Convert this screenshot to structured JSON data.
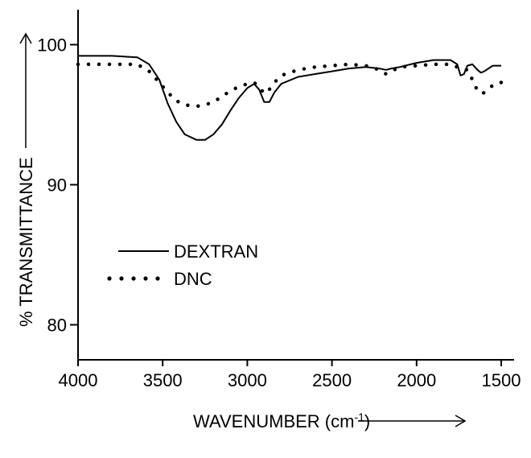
{
  "chart_data": {
    "type": "line",
    "xlabel": "WAVENUMBER (cm",
    "xlabel_sup": "-1",
    "xlabel_tail": ")",
    "ylabel": "% TRANSMITTANCE",
    "xlim": [
      4000,
      1500
    ],
    "ylim": [
      77.5,
      102.5
    ],
    "x_ticks": [
      "4000",
      "3500",
      "3000",
      "2500",
      "2000",
      "1500"
    ],
    "x_tick_values": [
      4000,
      3500,
      3000,
      2500,
      2000,
      1500
    ],
    "y_ticks": [
      "80",
      "90",
      "100"
    ],
    "y_tick_values": [
      80,
      90,
      100
    ],
    "x_axis_reversed": true,
    "grid": false,
    "legend_position": "lower-left",
    "series": [
      {
        "name": "DEXTRAN",
        "style": "solid",
        "points": [
          [
            4000,
            99.2
          ],
          [
            3800,
            99.2
          ],
          [
            3650,
            99.1
          ],
          [
            3580,
            98.6
          ],
          [
            3520,
            97.5
          ],
          [
            3470,
            95.8
          ],
          [
            3420,
            94.5
          ],
          [
            3370,
            93.6
          ],
          [
            3300,
            93.2
          ],
          [
            3250,
            93.2
          ],
          [
            3200,
            93.6
          ],
          [
            3150,
            94.3
          ],
          [
            3100,
            95.3
          ],
          [
            3050,
            96.2
          ],
          [
            3000,
            96.9
          ],
          [
            2960,
            97.2
          ],
          [
            2930,
            96.8
          ],
          [
            2900,
            95.9
          ],
          [
            2870,
            95.9
          ],
          [
            2840,
            96.6
          ],
          [
            2800,
            97.2
          ],
          [
            2700,
            97.7
          ],
          [
            2600,
            97.9
          ],
          [
            2500,
            98.1
          ],
          [
            2400,
            98.3
          ],
          [
            2300,
            98.4
          ],
          [
            2220,
            98.3
          ],
          [
            2180,
            98.2
          ],
          [
            2150,
            98.3
          ],
          [
            2100,
            98.4
          ],
          [
            2000,
            98.7
          ],
          [
            1900,
            98.9
          ],
          [
            1800,
            98.9
          ],
          [
            1760,
            98.6
          ],
          [
            1740,
            97.8
          ],
          [
            1720,
            97.9
          ],
          [
            1700,
            98.5
          ],
          [
            1670,
            98.6
          ],
          [
            1640,
            98.2
          ],
          [
            1620,
            98.0
          ],
          [
            1600,
            98.1
          ],
          [
            1550,
            98.5
          ],
          [
            1500,
            98.5
          ]
        ]
      },
      {
        "name": "DNC",
        "style": "dotted",
        "points": [
          [
            4000,
            98.6
          ],
          [
            3800,
            98.6
          ],
          [
            3650,
            98.6
          ],
          [
            3580,
            98.1
          ],
          [
            3520,
            97.3
          ],
          [
            3470,
            96.6
          ],
          [
            3420,
            96.0
          ],
          [
            3370,
            95.7
          ],
          [
            3300,
            95.6
          ],
          [
            3250,
            95.7
          ],
          [
            3200,
            95.9
          ],
          [
            3150,
            96.3
          ],
          [
            3100,
            96.7
          ],
          [
            3050,
            97.0
          ],
          [
            3000,
            97.2
          ],
          [
            2960,
            97.3
          ],
          [
            2930,
            97.0
          ],
          [
            2900,
            96.5
          ],
          [
            2870,
            96.8
          ],
          [
            2840,
            97.3
          ],
          [
            2800,
            97.8
          ],
          [
            2700,
            98.2
          ],
          [
            2600,
            98.4
          ],
          [
            2500,
            98.5
          ],
          [
            2400,
            98.6
          ],
          [
            2300,
            98.5
          ],
          [
            2220,
            98.2
          ],
          [
            2180,
            97.9
          ],
          [
            2150,
            98.1
          ],
          [
            2100,
            98.4
          ],
          [
            2000,
            98.5
          ],
          [
            1900,
            98.6
          ],
          [
            1800,
            98.6
          ],
          [
            1760,
            98.4
          ],
          [
            1740,
            98.3
          ],
          [
            1700,
            98.2
          ],
          [
            1670,
            97.5
          ],
          [
            1640,
            96.7
          ],
          [
            1610,
            96.5
          ],
          [
            1580,
            96.8
          ],
          [
            1550,
            97.1
          ],
          [
            1520,
            97.3
          ],
          [
            1500,
            97.3
          ]
        ]
      }
    ]
  }
}
